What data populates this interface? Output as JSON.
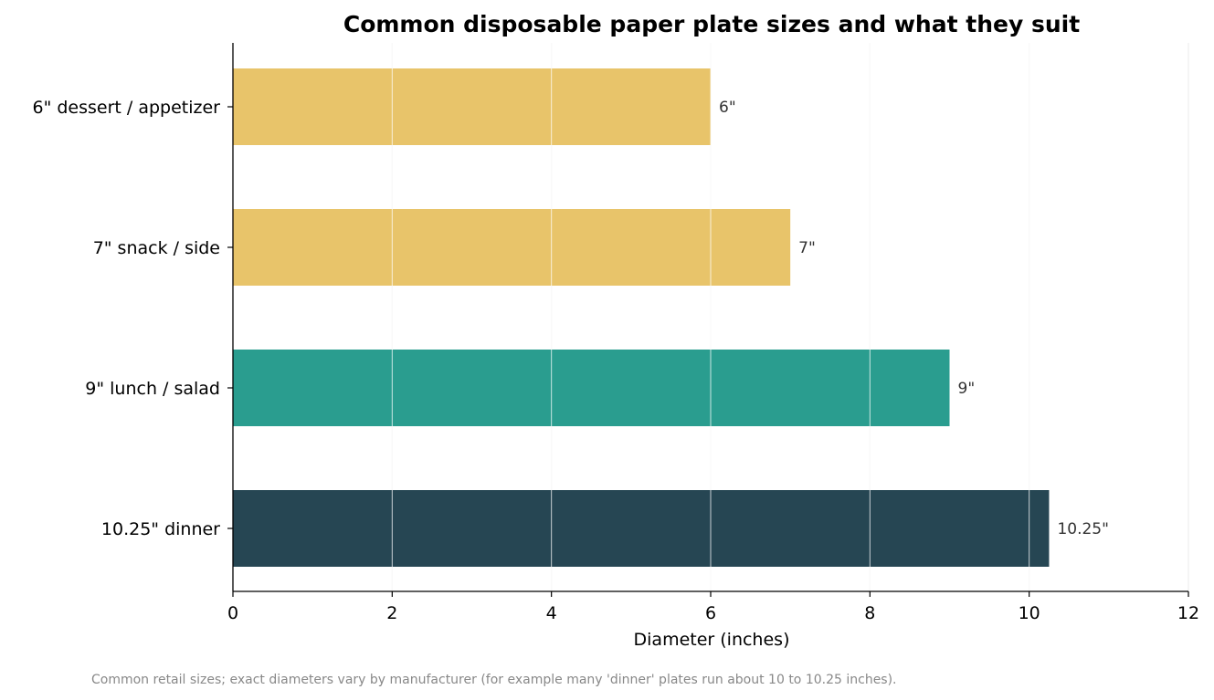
{
  "chart_data": {
    "type": "bar",
    "orientation": "horizontal",
    "title": "Common disposable paper plate sizes and what they suit",
    "xlabel": "Diameter (inches)",
    "ylabel": "",
    "xlim": [
      0,
      12
    ],
    "x_ticks": [
      0,
      2,
      4,
      6,
      8,
      10,
      12
    ],
    "grid": "vertical",
    "categories": [
      "6\" dessert / appetizer",
      "7\" snack / side",
      "9\" lunch / salad",
      "10.25\" dinner"
    ],
    "values": [
      6,
      7,
      9,
      10.25
    ],
    "data_labels": [
      "6\"",
      "7\"",
      "9\"",
      "10.25\""
    ],
    "colors": [
      "#e8c46a",
      "#e8c46a",
      "#2a9d8f",
      "#264653"
    ],
    "footnote": "Common retail sizes; exact diameters vary by manufacturer (for example many 'dinner' plates run about 10 to 10.25 inches)."
  }
}
